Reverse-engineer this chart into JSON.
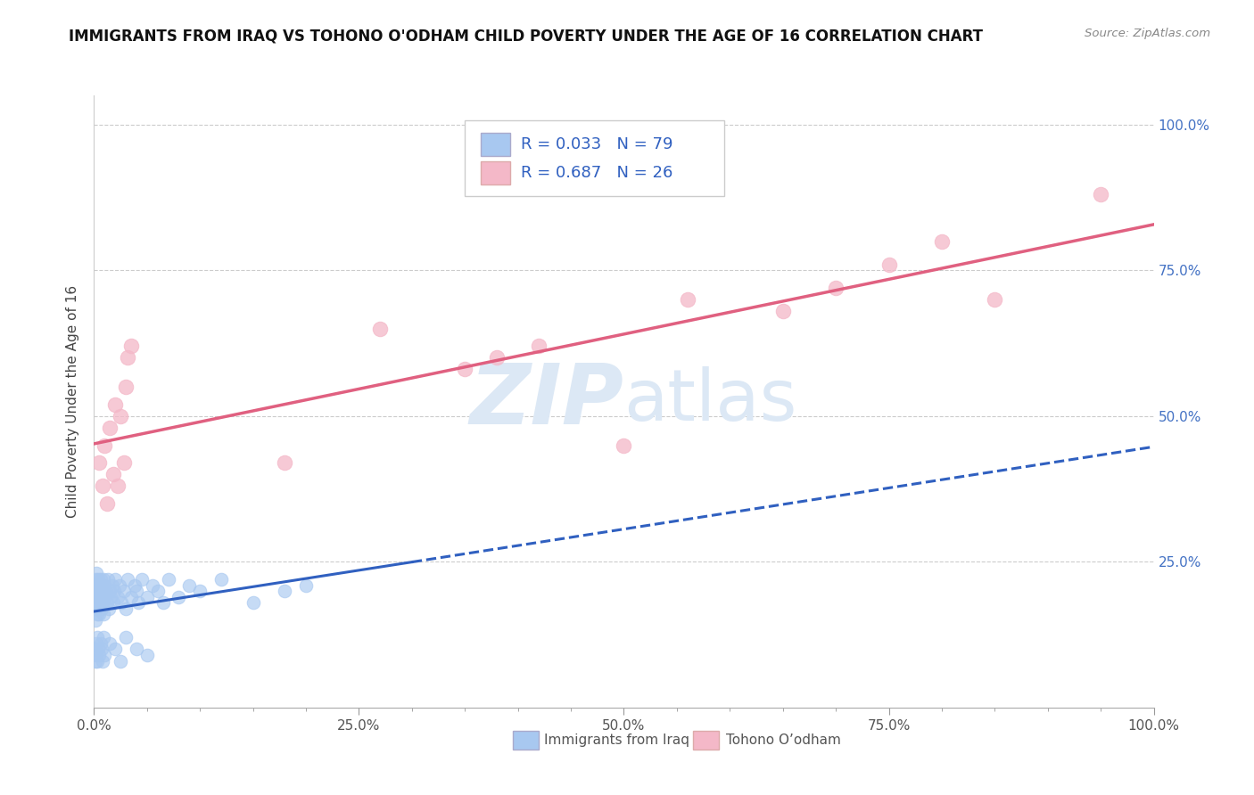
{
  "title": "IMMIGRANTS FROM IRAQ VS TOHONO O'ODHAM CHILD POVERTY UNDER THE AGE OF 16 CORRELATION CHART",
  "source": "Source: ZipAtlas.com",
  "ylabel": "Child Poverty Under the Age of 16",
  "legend1_label": "Immigrants from Iraq",
  "legend2_label": "Tohono O’odham",
  "R1": "0.033",
  "N1": "79",
  "R2": "0.687",
  "N2": "26",
  "color1": "#a8c8f0",
  "color2": "#f4b8c8",
  "line1_color": "#3060c0",
  "line2_color": "#e06080",
  "watermark_color": "#dce8f5",
  "blue_x": [
    0.001,
    0.001,
    0.001,
    0.001,
    0.002,
    0.002,
    0.002,
    0.002,
    0.003,
    0.003,
    0.003,
    0.004,
    0.004,
    0.004,
    0.005,
    0.005,
    0.005,
    0.006,
    0.006,
    0.007,
    0.007,
    0.008,
    0.008,
    0.009,
    0.009,
    0.01,
    0.01,
    0.011,
    0.012,
    0.013,
    0.014,
    0.015,
    0.016,
    0.017,
    0.018,
    0.019,
    0.02,
    0.022,
    0.024,
    0.026,
    0.028,
    0.03,
    0.032,
    0.035,
    0.038,
    0.04,
    0.042,
    0.045,
    0.05,
    0.055,
    0.06,
    0.065,
    0.07,
    0.08,
    0.09,
    0.1,
    0.12,
    0.15,
    0.18,
    0.2,
    0.001,
    0.001,
    0.002,
    0.002,
    0.003,
    0.003,
    0.004,
    0.005,
    0.006,
    0.007,
    0.008,
    0.009,
    0.01,
    0.015,
    0.02,
    0.025,
    0.03,
    0.04,
    0.05
  ],
  "blue_y": [
    0.2,
    0.18,
    0.22,
    0.15,
    0.19,
    0.21,
    0.17,
    0.23,
    0.2,
    0.18,
    0.16,
    0.22,
    0.19,
    0.21,
    0.18,
    0.2,
    0.16,
    0.22,
    0.19,
    0.21,
    0.17,
    0.2,
    0.18,
    0.22,
    0.16,
    0.19,
    0.21,
    0.2,
    0.18,
    0.22,
    0.17,
    0.2,
    0.19,
    0.21,
    0.18,
    0.2,
    0.22,
    0.19,
    0.21,
    0.18,
    0.2,
    0.17,
    0.22,
    0.19,
    0.21,
    0.2,
    0.18,
    0.22,
    0.19,
    0.21,
    0.2,
    0.18,
    0.22,
    0.19,
    0.21,
    0.2,
    0.22,
    0.18,
    0.2,
    0.21,
    0.1,
    0.08,
    0.11,
    0.09,
    0.12,
    0.08,
    0.1,
    0.09,
    0.11,
    0.1,
    0.08,
    0.12,
    0.09,
    0.11,
    0.1,
    0.08,
    0.12,
    0.1,
    0.09
  ],
  "pink_x": [
    0.005,
    0.008,
    0.01,
    0.012,
    0.015,
    0.018,
    0.02,
    0.022,
    0.025,
    0.028,
    0.03,
    0.032,
    0.035,
    0.18,
    0.27,
    0.35,
    0.42,
    0.5,
    0.56,
    0.65,
    0.7,
    0.75,
    0.8,
    0.85,
    0.95,
    0.38
  ],
  "pink_y": [
    0.42,
    0.38,
    0.45,
    0.35,
    0.48,
    0.4,
    0.52,
    0.38,
    0.5,
    0.42,
    0.55,
    0.6,
    0.62,
    0.42,
    0.65,
    0.58,
    0.62,
    0.45,
    0.7,
    0.68,
    0.72,
    0.76,
    0.8,
    0.7,
    0.88,
    0.6
  ],
  "xlim": [
    0.0,
    1.0
  ],
  "ylim": [
    0.0,
    1.05
  ],
  "ytick_positions": [
    0.25,
    0.5,
    0.75,
    1.0
  ],
  "right_ytick_labels": [
    "25.0%",
    "50.0%",
    "75.0%",
    "100.0%"
  ]
}
